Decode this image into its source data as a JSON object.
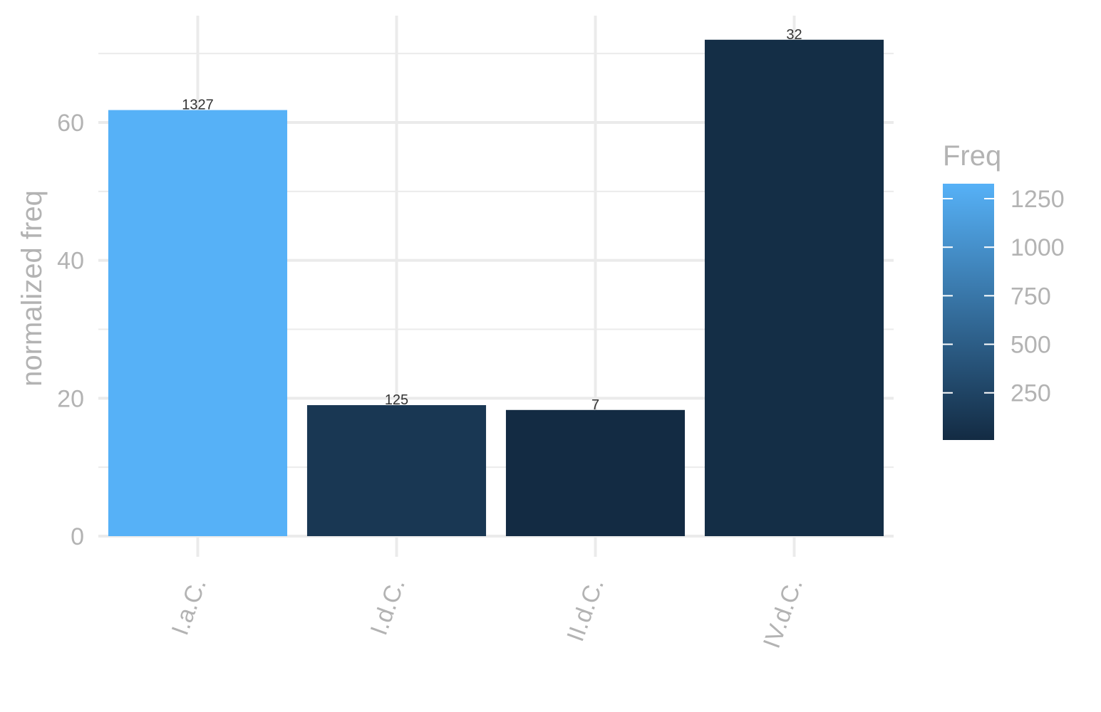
{
  "chart_data": {
    "type": "bar",
    "categories": [
      "I.a.C.",
      "I.d.C.",
      "II.d.C.",
      "IV.d.C."
    ],
    "values": [
      61.8,
      19.0,
      18.3,
      72.0
    ],
    "fill_values": [
      1327,
      125,
      7,
      32
    ],
    "data_labels": [
      "1327",
      "125",
      "7",
      "32"
    ],
    "ylabel": "normalized freq",
    "xlabel": "",
    "ylim": [
      0,
      70
    ],
    "y_ticks": [
      0,
      20,
      40,
      60
    ],
    "y_tick_labels": [
      "0",
      "20",
      "40",
      "60"
    ],
    "grid": true,
    "legend": {
      "title": "Freq",
      "type": "colorbar",
      "placement": "right",
      "ticks": [
        250,
        500,
        750,
        1000,
        1250
      ],
      "tick_labels": [
        "250",
        "500",
        "750",
        "1000",
        "1250"
      ],
      "range": [
        7,
        1327
      ],
      "low_color": "#132B43",
      "high_color": "#56B1F7"
    }
  }
}
